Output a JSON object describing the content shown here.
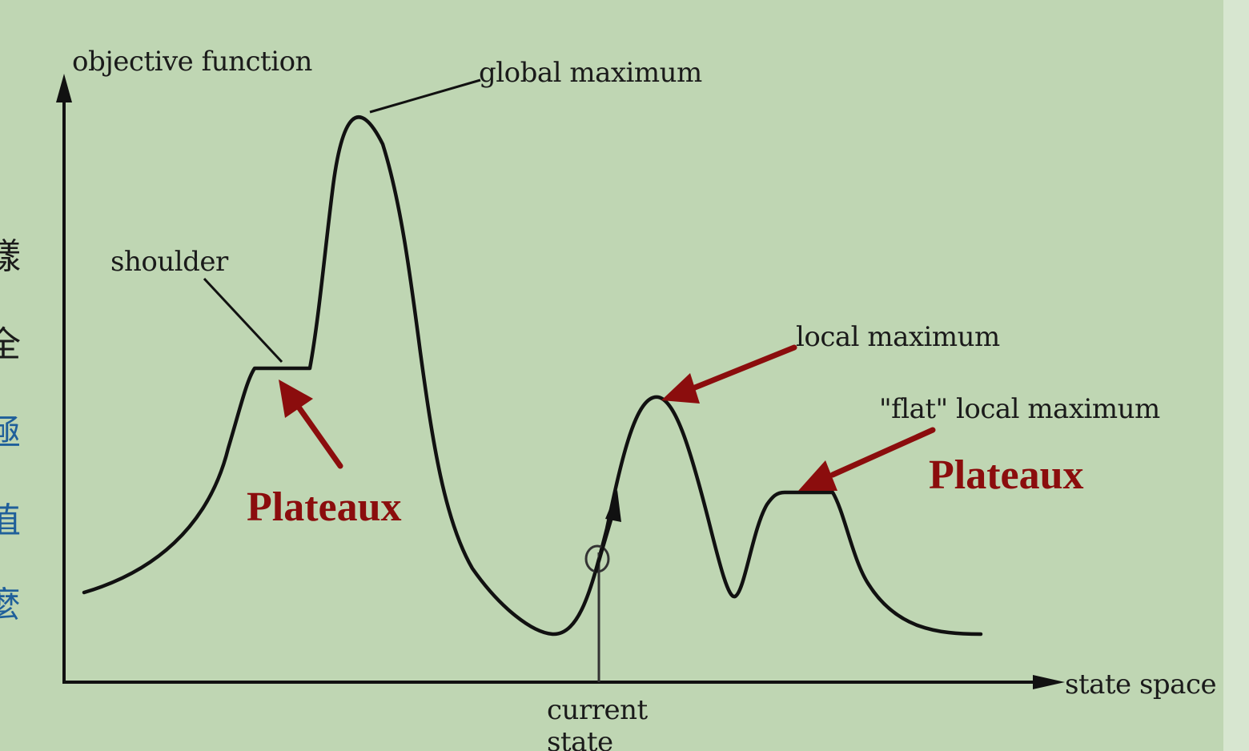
{
  "diagram": {
    "y_axis_label": "objective function",
    "x_axis_label": "state space",
    "labels": {
      "global_maximum": "global maximum",
      "shoulder": "shoulder",
      "local_maximum": "local maximum",
      "flat_local_maximum": "\"flat\" local maximum",
      "current_state_line1": "current",
      "current_state_line2": "state"
    },
    "annotations": {
      "plateaux_left": "Plateaux",
      "plateaux_right": "Plateaux"
    }
  },
  "colors": {
    "background": "#bfd6b3",
    "curve": "#111111",
    "annotation": "#8b0d0d",
    "side_text_dark": "#1a1a1a",
    "side_text_blue": "#1f5f9a"
  }
}
